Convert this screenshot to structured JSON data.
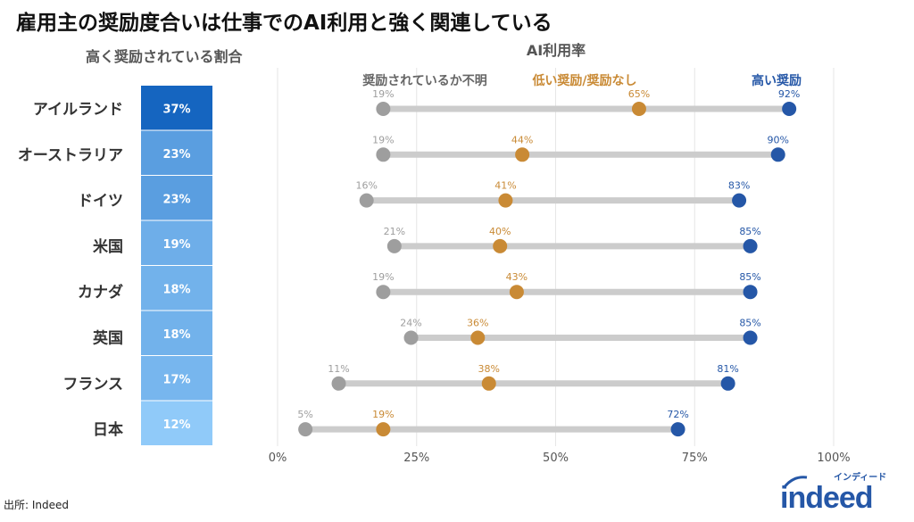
{
  "title": "雇用主の奨励度合いは仕事でのAI利用と強く関連している",
  "left_panel": {
    "title": "高く奨励されている割合"
  },
  "source": "出所: Indeed",
  "logo": {
    "text": "indeed",
    "sub": "インディード",
    "color": "#2557a7"
  },
  "colors": {
    "unknown": "#9e9e9e",
    "low": "#c98a35",
    "high": "#2557a7",
    "line": "#cccccc",
    "bar_dark": "#1565c0",
    "bar_light": "#90caf9"
  },
  "chart_data": {
    "type": "dumbbell",
    "title": "AI利用率",
    "xlim": [
      0,
      100
    ],
    "x_ticks": [
      "0%",
      "25%",
      "50%",
      "75%",
      "100%"
    ],
    "grid": true,
    "categories": [
      "アイルランド",
      "オーストラリア",
      "ドイツ",
      "米国",
      "カナダ",
      "英国",
      "フランス",
      "日本"
    ],
    "encouraged_share": [
      37,
      23,
      23,
      19,
      18,
      18,
      17,
      12
    ],
    "encouraged_share_labels": [
      "37%",
      "23%",
      "23%",
      "19%",
      "18%",
      "18%",
      "17%",
      "12%"
    ],
    "series": [
      {
        "name": "奨励されているか不明",
        "values": [
          19,
          19,
          16,
          21,
          19,
          24,
          11,
          5
        ],
        "labels": [
          "19%",
          "19%",
          "16%",
          "21%",
          "19%",
          "24%",
          "11%",
          "5%"
        ]
      },
      {
        "name": "低い奨励/奨励なし",
        "values": [
          65,
          44,
          41,
          40,
          43,
          36,
          38,
          19
        ],
        "labels": [
          "65%",
          "44%",
          "41%",
          "40%",
          "43%",
          "36%",
          "38%",
          "19%"
        ]
      },
      {
        "name": "高い奨励",
        "values": [
          92,
          90,
          83,
          85,
          85,
          85,
          81,
          72
        ],
        "labels": [
          "92%",
          "90%",
          "83%",
          "85%",
          "85%",
          "85%",
          "81%",
          "72%"
        ]
      }
    ]
  }
}
